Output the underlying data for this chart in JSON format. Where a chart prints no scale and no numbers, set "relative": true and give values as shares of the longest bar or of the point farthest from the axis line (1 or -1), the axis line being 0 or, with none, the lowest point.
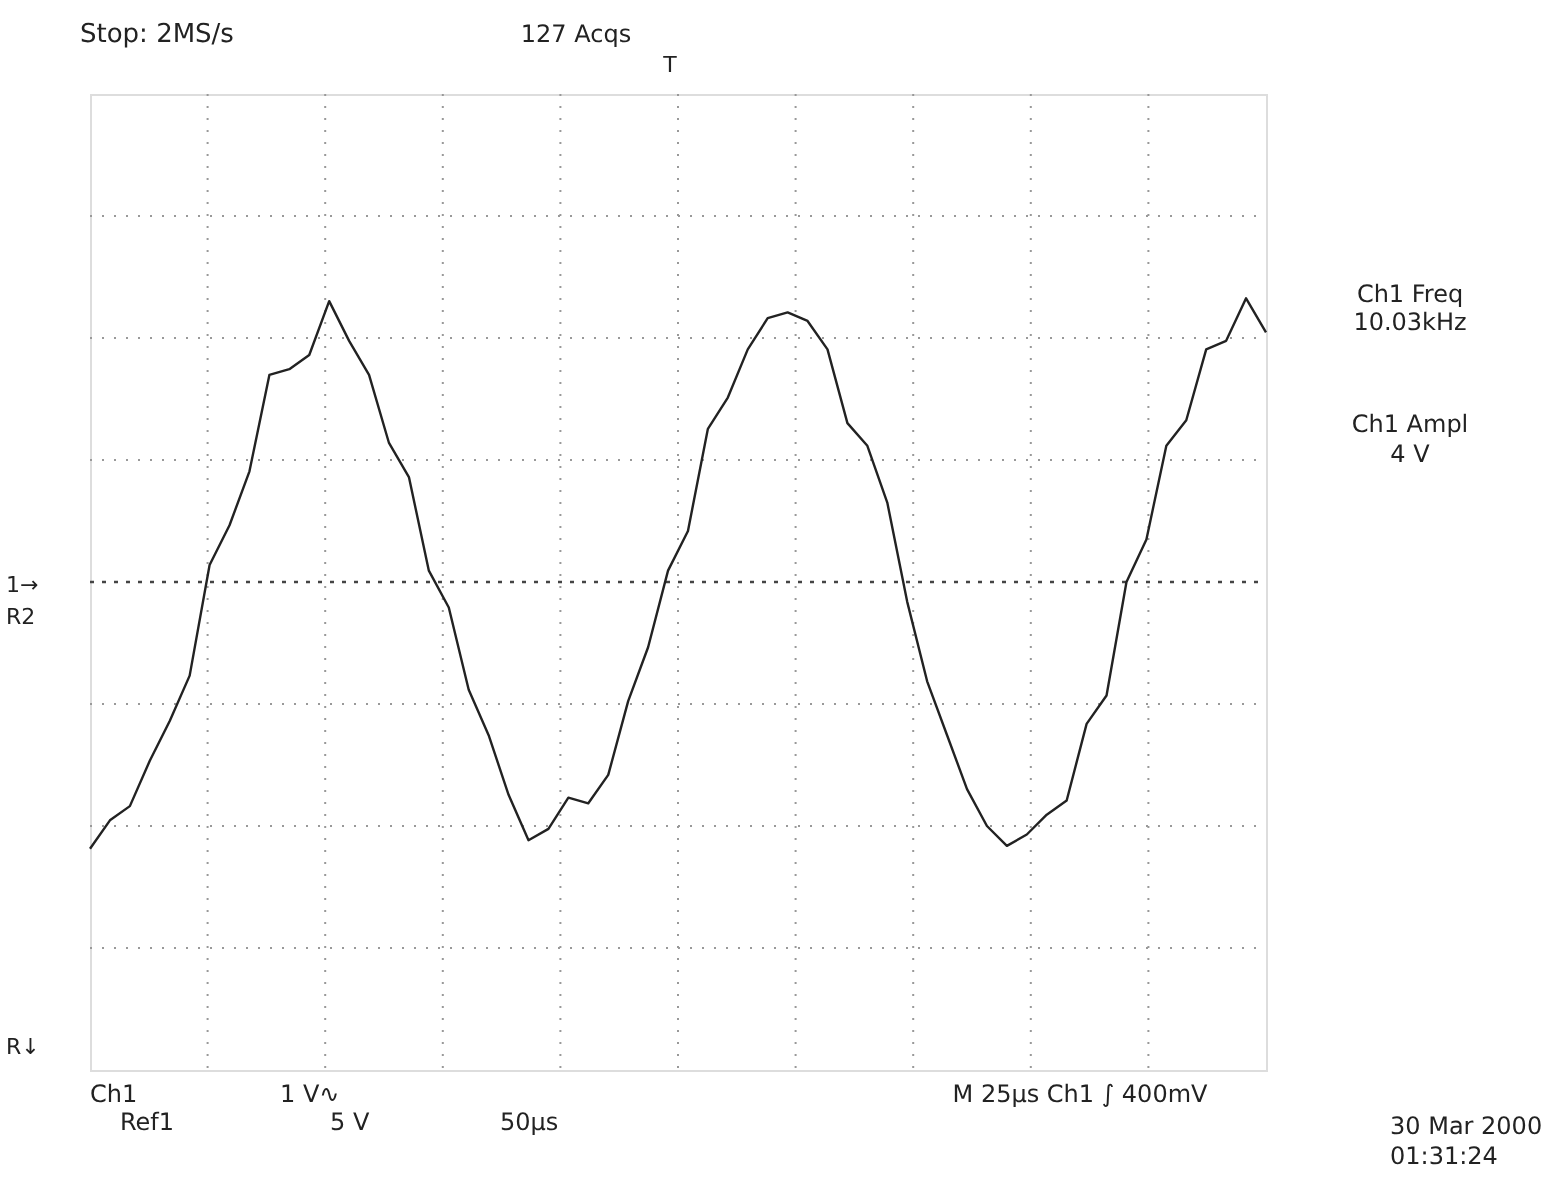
{
  "chart_data": {
    "type": "line",
    "relative": true,
    "grid": true,
    "line_style": "solid",
    "marker": "none",
    "categories": [
      null,
      null,
      null,
      null,
      null,
      null,
      null,
      null,
      null,
      null,
      null,
      null,
      null,
      null,
      null,
      null,
      null,
      null,
      null,
      null,
      null,
      null,
      null,
      null,
      null,
      null,
      null,
      null,
      null,
      null,
      null,
      null,
      null,
      null,
      null,
      null,
      null,
      null,
      null,
      null,
      null,
      null,
      null,
      null,
      null,
      null,
      null,
      null,
      null,
      null,
      null,
      null,
      null,
      null,
      null,
      null,
      null,
      null,
      null,
      null
    ],
    "series": [
      {
        "color": "#222222",
        "values": [
          -0.94,
          -0.84,
          -0.79,
          -0.63,
          -0.49,
          -0.33,
          0.06,
          0.2,
          0.39,
          0.73,
          0.75,
          0.8,
          0.99,
          0.85,
          0.73,
          0.49,
          0.37,
          0.04,
          -0.09,
          -0.38,
          -0.54,
          -0.75,
          -0.91,
          -0.87,
          -0.76,
          -0.78,
          -0.68,
          -0.42,
          -0.23,
          0.04,
          0.18,
          0.54,
          0.65,
          0.82,
          0.93,
          0.95,
          0.92,
          0.82,
          0.56,
          0.48,
          0.28,
          -0.07,
          -0.35,
          -0.54,
          -0.73,
          -0.86,
          -0.93,
          -0.89,
          -0.82,
          -0.77,
          -0.5,
          -0.4,
          0,
          0.15,
          0.48,
          0.57,
          0.82,
          0.85,
          1.0,
          0.88
        ]
      }
    ],
    "ref_lines": [
      {
        "axis": "y",
        "value": 0,
        "color": "#444444",
        "line_style": "dotted"
      }
    ],
    "annotations": [
      "Stop: 2MS/s",
      "127 Acqs",
      "T",
      "Ch1 Freq",
      "10.03kHz",
      "Ch1 Ampl",
      "4 V",
      "1→",
      "R2",
      "R↓",
      "Ch1",
      "1 V∿",
      "Ref1",
      "5 V",
      "50µs",
      "M 25µs Ch1 ∫ 400mV",
      "30 Mar 2000",
      "01:31:24"
    ]
  }
}
